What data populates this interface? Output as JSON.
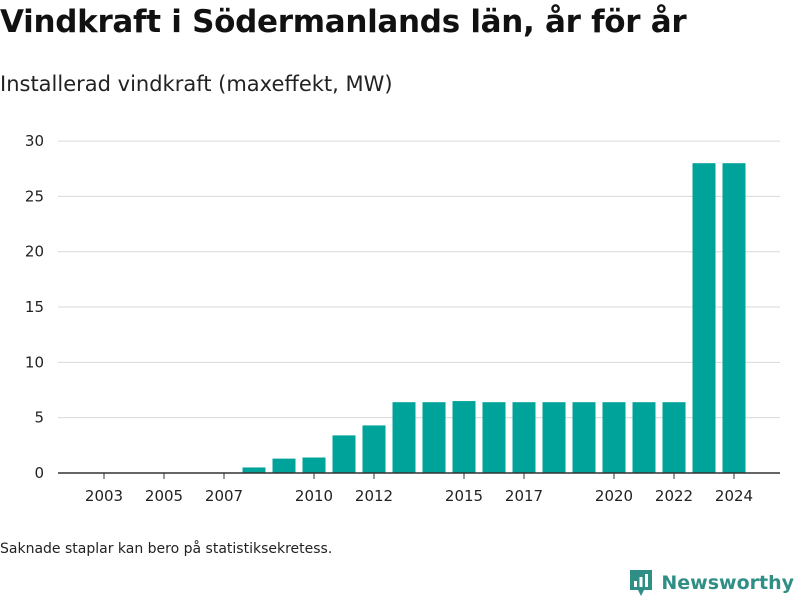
{
  "header": {
    "title": "Vindkraft i Södermanlands län, år för år",
    "subtitle": "Installerad vindkraft (maxeffekt, MW)"
  },
  "footer": {
    "note": "Saknade staplar kan bero på statistiksekretess.",
    "brand": "Newsworthy",
    "brand_icon": "newsworthy-logo-icon"
  },
  "colors": {
    "bar": "#00a39a",
    "grid": "#d9d9d9",
    "axis": "#333333",
    "brand": "#2f8f87"
  },
  "chart_data": {
    "type": "bar",
    "title": "Vindkraft i Södermanlands län, år för år",
    "subtitle": "Installerad vindkraft (maxeffekt, MW)",
    "xlabel": "",
    "ylabel": "",
    "categories": [
      "2003",
      "2004",
      "2005",
      "2006",
      "2007",
      "2008",
      "2009",
      "2010",
      "2011",
      "2012",
      "2013",
      "2014",
      "2015",
      "2016",
      "2017",
      "2018",
      "2019",
      "2020",
      "2021",
      "2022",
      "2023",
      "2024"
    ],
    "values": [
      0,
      0,
      0,
      0,
      0,
      0.5,
      1.3,
      1.4,
      3.4,
      4.3,
      6.4,
      6.4,
      6.5,
      6.4,
      6.4,
      6.4,
      6.4,
      6.4,
      6.4,
      6.4,
      28,
      28
    ],
    "x_tick_labels": [
      "2003",
      "2005",
      "2007",
      "2010",
      "2012",
      "2015",
      "2017",
      "2020",
      "2022",
      "2024"
    ],
    "y_ticks": [
      0,
      5,
      10,
      15,
      20,
      25,
      30
    ],
    "ylim": [
      0,
      31
    ],
    "grid": true,
    "legend": "none"
  }
}
